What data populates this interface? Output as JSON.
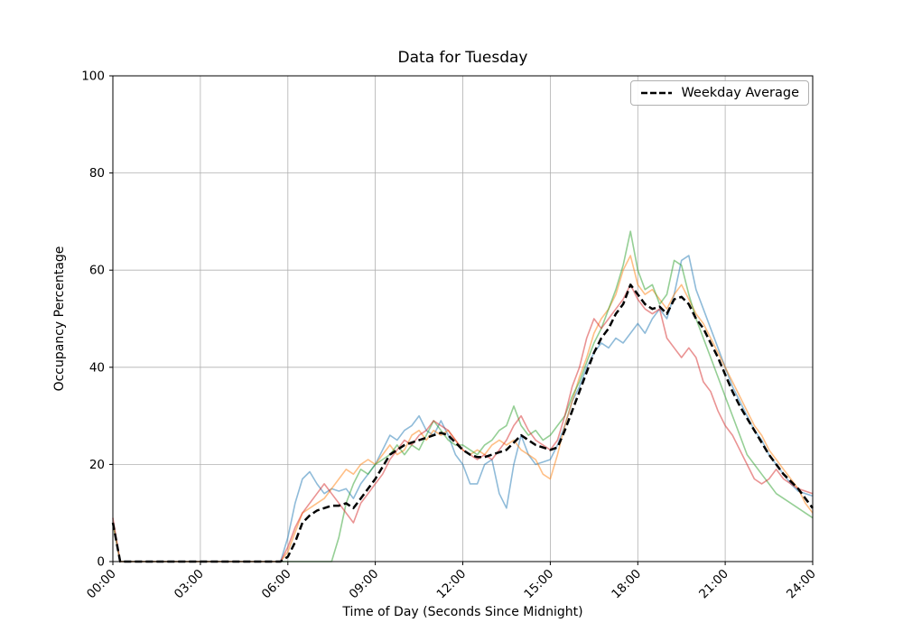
{
  "chart_data": {
    "type": "line",
    "title": "Data for Tuesday",
    "xlabel": "Time of Day (Seconds Since Midnight)",
    "ylabel": "Occupancy Percentage",
    "xlim_hours": [
      0,
      24
    ],
    "ylim": [
      0,
      100
    ],
    "grid": true,
    "grid_color": "#b0b0b0",
    "spine_color": "#000000",
    "tick_color": "#000000",
    "background": "#ffffff",
    "xticks": {
      "hours": [
        0,
        3,
        6,
        9,
        12,
        15,
        18,
        21,
        24
      ],
      "labels": [
        "00:00",
        "03:00",
        "06:00",
        "09:00",
        "12:00",
        "15:00",
        "18:00",
        "21:00",
        "24:00"
      ],
      "rotation_deg": 45
    },
    "yticks": {
      "values": [
        0,
        20,
        40,
        60,
        80,
        100
      ],
      "labels": [
        "0",
        "20",
        "40",
        "60",
        "80",
        "100"
      ]
    },
    "legend": {
      "location": "upper right",
      "entries": [
        {
          "label": "Weekday Average",
          "color": "#000000",
          "dash": true,
          "width": 2.5
        }
      ]
    },
    "x_hours": {
      "start": 0,
      "step": 0.25
    },
    "series": [
      {
        "name": "individual-day-1",
        "color": "#1f77b4",
        "opacity": 0.5,
        "width": 1.6,
        "dash": null,
        "values": [
          8,
          0,
          0,
          0,
          0,
          0,
          0,
          0,
          0,
          0,
          0,
          0,
          0,
          0,
          0,
          0,
          0,
          0,
          0,
          0,
          0,
          0,
          0,
          0,
          5,
          12,
          17,
          18.5,
          16,
          14,
          15,
          14.5,
          15,
          13,
          16,
          18,
          20,
          23,
          26,
          25,
          27,
          28,
          30,
          27,
          26,
          29,
          26,
          22,
          20,
          16,
          16,
          20,
          21,
          14,
          11,
          20,
          26,
          22,
          20,
          20.5,
          21,
          24,
          28,
          33,
          36,
          40,
          43,
          45,
          44,
          46,
          45,
          47,
          49,
          47,
          50,
          52,
          50,
          55,
          62,
          63,
          56,
          52,
          48,
          44,
          40,
          36,
          33,
          30,
          27,
          25,
          22,
          20,
          18,
          16,
          14.5,
          14,
          13.5
        ]
      },
      {
        "name": "individual-day-2",
        "color": "#ff7f0e",
        "opacity": 0.5,
        "width": 1.6,
        "dash": null,
        "values": [
          8,
          0,
          0,
          0,
          0,
          0,
          0,
          0,
          0,
          0,
          0,
          0,
          0,
          0,
          0,
          0,
          0,
          0,
          0,
          0,
          0,
          0,
          0,
          0,
          2,
          6,
          10,
          11,
          12,
          13,
          15,
          17,
          19,
          18,
          20,
          21,
          20,
          22,
          24,
          22,
          23,
          26,
          27,
          25,
          27,
          26,
          27,
          25,
          23,
          22,
          23,
          22,
          24,
          25,
          24,
          25,
          23,
          22,
          21,
          18,
          17,
          22,
          28,
          33,
          38,
          42,
          47,
          50,
          52,
          55,
          60,
          63,
          57,
          55,
          56,
          54,
          52,
          55,
          57,
          54,
          51,
          49,
          46,
          43,
          40,
          37,
          34,
          31,
          28,
          26,
          23,
          21,
          19,
          17,
          15,
          12,
          10
        ]
      },
      {
        "name": "individual-day-3",
        "color": "#2ca02c",
        "opacity": 0.5,
        "width": 1.6,
        "dash": null,
        "values": [
          8,
          0,
          0,
          0,
          0,
          0,
          0,
          0,
          0,
          0,
          0,
          0,
          0,
          0,
          0,
          0,
          0,
          0,
          0,
          0,
          0,
          0,
          0,
          0,
          0,
          0,
          0,
          0,
          0,
          0,
          0,
          5,
          12,
          16,
          19,
          18,
          20,
          21,
          22,
          24,
          22,
          24,
          23,
          26,
          29,
          27,
          25,
          24,
          24,
          23,
          22,
          24,
          25,
          27,
          28,
          32,
          28,
          26,
          27,
          25,
          26,
          28,
          30,
          34,
          37,
          41,
          45,
          48,
          52,
          56,
          61,
          68,
          60,
          56,
          57,
          53,
          55,
          62,
          61,
          55,
          50,
          46,
          42,
          38,
          34,
          30,
          26,
          22,
          20,
          18,
          16,
          14,
          13,
          12,
          11,
          10,
          9
        ]
      },
      {
        "name": "individual-day-4",
        "color": "#d62728",
        "opacity": 0.5,
        "width": 1.6,
        "dash": null,
        "values": [
          9,
          0,
          0,
          0,
          0,
          0,
          0,
          0,
          0,
          0,
          0,
          0,
          0,
          0,
          0,
          0,
          0,
          0,
          0,
          0,
          0,
          0,
          0,
          0,
          3,
          7,
          10,
          12,
          14,
          16,
          14,
          12,
          10,
          8,
          12,
          14,
          16,
          18,
          21,
          23,
          25,
          24,
          26,
          27,
          29,
          28,
          27,
          25,
          23,
          22,
          21,
          22,
          21,
          23,
          25,
          28,
          30,
          27,
          25,
          24,
          23,
          25,
          30,
          36,
          40,
          46,
          50,
          48,
          50,
          52,
          54,
          57,
          54,
          52,
          51,
          52,
          46,
          44,
          42,
          44,
          42,
          37,
          35,
          31,
          28,
          26,
          23,
          20,
          17,
          16,
          17,
          19,
          17,
          16,
          15,
          14.5,
          14
        ]
      },
      {
        "name": "weekday-average",
        "label": "Weekday Average",
        "in_legend": true,
        "color": "#000000",
        "opacity": 1,
        "width": 2.5,
        "dash": "8,4",
        "values": [
          8,
          0,
          0,
          0,
          0,
          0,
          0,
          0,
          0,
          0,
          0,
          0,
          0,
          0,
          0,
          0,
          0,
          0,
          0,
          0,
          0,
          0,
          0,
          0,
          1,
          4,
          8,
          9.5,
          10.5,
          11,
          11.5,
          11.5,
          12,
          11,
          13,
          15,
          17,
          19.5,
          22,
          23,
          24,
          24.5,
          25,
          25.5,
          26,
          26.5,
          26,
          24.5,
          23,
          22,
          21.5,
          21.5,
          22,
          22.5,
          23,
          24.5,
          26,
          25,
          24,
          23.5,
          23,
          23.5,
          27,
          31,
          35,
          39,
          43,
          46,
          48,
          51,
          53,
          57,
          55,
          53,
          52,
          52.5,
          51,
          54,
          54.5,
          53,
          50,
          48,
          45,
          42,
          38.5,
          35,
          32,
          29.5,
          27,
          24.5,
          22,
          20,
          18,
          16.5,
          15,
          13,
          11
        ]
      }
    ]
  }
}
